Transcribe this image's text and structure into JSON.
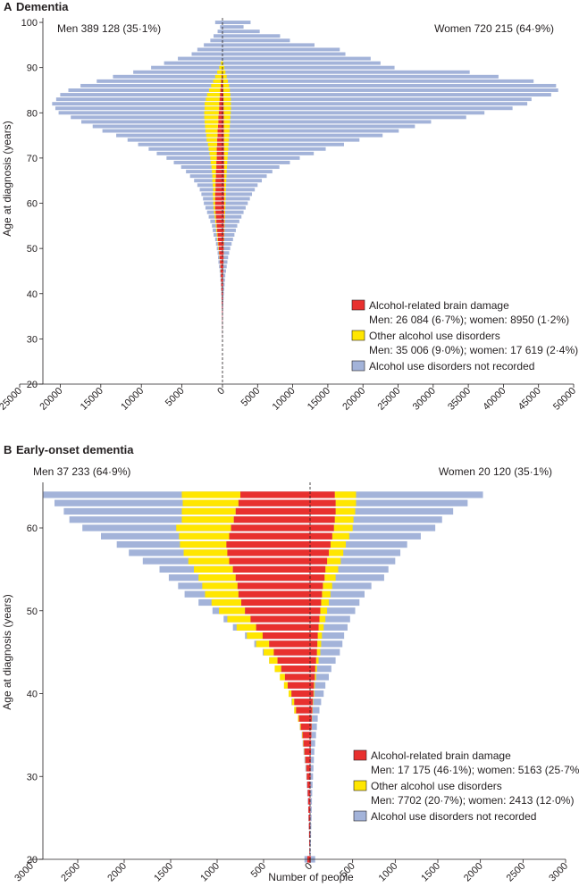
{
  "chart_data": [
    {
      "id": "A",
      "type": "bar",
      "orientation": "horizontal-pyramid",
      "panel_letter": "A",
      "title": "Dementia",
      "ylabel": "Age at diagnosis (years)",
      "xlabel": "",
      "ylim": [
        20,
        101
      ],
      "y_ticks": [
        20,
        30,
        40,
        50,
        60,
        70,
        80,
        90,
        100
      ],
      "men_x_ticks": [
        "25000",
        "20000",
        "15000",
        "10000",
        "5000",
        "0"
      ],
      "women_x_ticks": [
        "5000",
        "10000",
        "15000",
        "20000",
        "25000",
        "30000",
        "35000",
        "40000",
        "45000",
        "50000"
      ],
      "men_max": 25000,
      "women_max": 50000,
      "men_label": "Men 389 128 (35·1%)",
      "women_label": "Women 720 215 (64·9%)",
      "legend": [
        {
          "label": "Alcohol-related brain damage",
          "note": "Men: 26 084 (6·7%); women: 8950 (1·2%)",
          "color": "#e8302e"
        },
        {
          "label": "Other alcohol use disorders",
          "note": "Men: 35 006 (9·0%); women: 17 619 (2·4%)",
          "color": "#ffe600"
        },
        {
          "label": "Alcohol use disorders not recorded",
          "note": "",
          "color": "#a3b3d9"
        }
      ],
      "ages": [
        100,
        99,
        98,
        97,
        96,
        95,
        94,
        93,
        92,
        91,
        90,
        89,
        88,
        87,
        86,
        85,
        84,
        83,
        82,
        81,
        80,
        79,
        78,
        77,
        76,
        75,
        74,
        73,
        72,
        71,
        70,
        69,
        68,
        67,
        66,
        65,
        64,
        63,
        62,
        61,
        60,
        59,
        58,
        57,
        56,
        55,
        54,
        53,
        52,
        51,
        50,
        49,
        48,
        47,
        46,
        45,
        44,
        43,
        42,
        41,
        40,
        39,
        38,
        37,
        36,
        35,
        34,
        33,
        32,
        31,
        30
      ],
      "men_total": [
        900,
        300,
        600,
        1100,
        1500,
        2300,
        3100,
        3800,
        5500,
        7200,
        8800,
        11000,
        13500,
        15500,
        17500,
        19000,
        20000,
        20500,
        21000,
        20600,
        20200,
        18700,
        17400,
        16000,
        14800,
        13100,
        11700,
        10400,
        9100,
        8100,
        6900,
        6000,
        5100,
        4500,
        4000,
        3500,
        3100,
        2800,
        2600,
        2400,
        2300,
        2100,
        1900,
        1700,
        1500,
        1300,
        1200,
        1100,
        900,
        800,
        700,
        600,
        550,
        500,
        420,
        350,
        300,
        250,
        200,
        180,
        150,
        120,
        100,
        80,
        60,
        50,
        40,
        30,
        20,
        15,
        10
      ],
      "men_red": [
        0,
        0,
        0,
        0,
        0,
        0,
        0,
        0,
        0,
        0,
        0,
        50,
        100,
        150,
        200,
        250,
        300,
        350,
        400,
        400,
        450,
        500,
        500,
        550,
        600,
        600,
        650,
        650,
        700,
        700,
        700,
        750,
        750,
        800,
        800,
        850,
        850,
        850,
        900,
        900,
        900,
        900,
        850,
        800,
        750,
        700,
        650,
        600,
        550,
        500,
        450,
        400,
        350,
        300,
        250,
        220,
        200,
        180,
        150,
        130,
        100,
        90,
        80,
        60,
        50,
        40,
        30,
        20,
        15,
        10,
        5
      ],
      "men_yellow": [
        0,
        0,
        0,
        0,
        0,
        0,
        0,
        0,
        0,
        200,
        400,
        600,
        800,
        1000,
        1200,
        1400,
        1600,
        1700,
        1800,
        1800,
        1800,
        1750,
        1700,
        1600,
        1500,
        1400,
        1300,
        1150,
        1000,
        900,
        800,
        700,
        600,
        500,
        450,
        400,
        350,
        300,
        280,
        250,
        230,
        200,
        180,
        160,
        140,
        120,
        110,
        100,
        80,
        70,
        60,
        50,
        40,
        30,
        25,
        20,
        15,
        10,
        8,
        5,
        4,
        3,
        2,
        0,
        0,
        0,
        0,
        0,
        0,
        0,
        0
      ],
      "women_total": [
        4000,
        3000,
        5300,
        8200,
        9600,
        13100,
        16700,
        17500,
        21100,
        22500,
        24500,
        35200,
        39300,
        44300,
        47500,
        47800,
        46800,
        44000,
        43400,
        41300,
        37300,
        34700,
        29700,
        27400,
        25100,
        22800,
        19500,
        17300,
        14700,
        13000,
        11000,
        9600,
        8100,
        7100,
        6300,
        5600,
        5000,
        4600,
        4200,
        3900,
        3600,
        3300,
        3000,
        2700,
        2400,
        2100,
        1900,
        1700,
        1500,
        1300,
        1100,
        950,
        800,
        700,
        600,
        500,
        400,
        350,
        300,
        250,
        200,
        160,
        130,
        100,
        80,
        60,
        40,
        30,
        20,
        15,
        10
      ],
      "women_red": [
        0,
        0,
        0,
        0,
        0,
        0,
        0,
        0,
        0,
        0,
        0,
        20,
        40,
        60,
        80,
        100,
        120,
        140,
        150,
        160,
        170,
        180,
        180,
        190,
        200,
        200,
        210,
        210,
        220,
        220,
        220,
        230,
        230,
        240,
        240,
        250,
        250,
        250,
        260,
        260,
        260,
        260,
        250,
        240,
        230,
        220,
        210,
        200,
        190,
        180,
        170,
        160,
        150,
        140,
        120,
        100,
        90,
        80,
        70,
        60,
        50,
        40,
        30,
        25,
        20,
        15,
        10,
        8,
        5,
        3,
        2
      ],
      "women_yellow": [
        0,
        0,
        0,
        0,
        0,
        0,
        0,
        0,
        0,
        100,
        250,
        400,
        550,
        700,
        850,
        950,
        1000,
        1050,
        1050,
        1050,
        1000,
        950,
        900,
        850,
        800,
        750,
        700,
        650,
        600,
        550,
        500,
        450,
        400,
        350,
        320,
        290,
        260,
        230,
        210,
        190,
        170,
        150,
        130,
        110,
        95,
        80,
        70,
        60,
        50,
        40,
        30,
        25,
        20,
        15,
        10,
        8,
        6,
        4,
        3,
        2,
        1,
        0,
        0,
        0,
        0,
        0,
        0,
        0,
        0,
        0,
        0
      ]
    },
    {
      "id": "B",
      "type": "bar",
      "orientation": "horizontal-pyramid",
      "panel_letter": "B",
      "title": "Early-onset dementia",
      "ylabel": "Age at diagnosis (years)",
      "xlabel": "Number of people",
      "ylim": [
        20,
        65.5
      ],
      "y_ticks": [
        20,
        30,
        40,
        50,
        60
      ],
      "men_x_ticks": [
        "3000",
        "2500",
        "2000",
        "1500",
        "1000",
        "500",
        "0"
      ],
      "women_x_ticks": [
        "500",
        "1000",
        "1500",
        "2000",
        "2500",
        "3000"
      ],
      "men_max": 3000,
      "women_max": 3000,
      "men_label": "Men 37 233 (64·9%)",
      "women_label": "Women 20 120 (35·1%)",
      "legend": [
        {
          "label": "Alcohol-related brain damage",
          "note": "Men: 17 175 (46·1%); women: 5163 (25·7%)",
          "color": "#e8302e"
        },
        {
          "label": "Other alcohol use disorders",
          "note": "Men: 7702 (20·7%); women: 2413 (12·0%)",
          "color": "#ffe600"
        },
        {
          "label": "Alcohol use disorders not recorded",
          "note": "",
          "color": "#a3b3d9"
        }
      ],
      "ages": [
        64,
        63,
        62,
        61,
        60,
        59,
        58,
        57,
        56,
        55,
        54,
        53,
        52,
        51,
        50,
        49,
        48,
        47,
        46,
        45,
        44,
        43,
        42,
        41,
        40,
        39,
        38,
        37,
        36,
        35,
        34,
        33,
        32,
        31,
        30,
        29,
        28,
        27,
        26,
        25,
        24,
        23,
        22,
        21,
        20
      ],
      "men_total": [
        2870,
        2750,
        2650,
        2590,
        2450,
        2250,
        2080,
        1950,
        1800,
        1620,
        1520,
        1420,
        1350,
        1200,
        1050,
        930,
        830,
        700,
        600,
        510,
        440,
        380,
        320,
        280,
        230,
        200,
        170,
        130,
        110,
        90,
        80,
        70,
        60,
        50,
        40,
        35,
        30,
        25,
        20,
        18,
        15,
        12,
        10,
        8,
        60
      ],
      "men_red": [
        750,
        770,
        800,
        820,
        850,
        870,
        900,
        890,
        870,
        830,
        800,
        780,
        770,
        740,
        700,
        640,
        580,
        510,
        440,
        390,
        350,
        310,
        270,
        240,
        200,
        170,
        150,
        120,
        100,
        80,
        70,
        60,
        50,
        40,
        35,
        30,
        25,
        20,
        18,
        15,
        12,
        10,
        8,
        6,
        30
      ],
      "men_yellow": [
        630,
        600,
        580,
        560,
        590,
        540,
        500,
        470,
        440,
        420,
        400,
        380,
        360,
        320,
        280,
        250,
        210,
        170,
        140,
        110,
        90,
        70,
        55,
        40,
        30,
        25,
        20,
        10,
        8,
        6,
        5,
        4,
        3,
        2,
        1,
        0,
        0,
        0,
        0,
        0,
        0,
        0,
        0,
        0,
        0
      ],
      "women_total": [
        2030,
        1850,
        1680,
        1550,
        1470,
        1300,
        1140,
        1060,
        1000,
        920,
        870,
        720,
        640,
        580,
        530,
        470,
        440,
        400,
        380,
        350,
        300,
        250,
        220,
        180,
        160,
        130,
        110,
        90,
        80,
        70,
        60,
        50,
        45,
        40,
        35,
        30,
        25,
        22,
        20,
        18,
        15,
        12,
        10,
        8,
        60
      ],
      "women_red": [
        290,
        300,
        300,
        290,
        280,
        260,
        240,
        220,
        200,
        180,
        170,
        150,
        140,
        130,
        120,
        110,
        100,
        90,
        85,
        80,
        70,
        60,
        55,
        45,
        40,
        30,
        25,
        20,
        18,
        15,
        12,
        10,
        8,
        7,
        6,
        5,
        4,
        4,
        3,
        3,
        2,
        2,
        1,
        1,
        8
      ],
      "women_yellow": [
        250,
        240,
        230,
        220,
        220,
        200,
        180,
        170,
        160,
        150,
        130,
        110,
        100,
        90,
        80,
        70,
        60,
        50,
        45,
        40,
        30,
        20,
        15,
        10,
        8,
        6,
        4,
        3,
        2,
        1,
        0,
        0,
        0,
        0,
        0,
        0,
        0,
        0,
        0,
        0,
        0,
        0,
        0,
        0,
        0
      ]
    }
  ]
}
